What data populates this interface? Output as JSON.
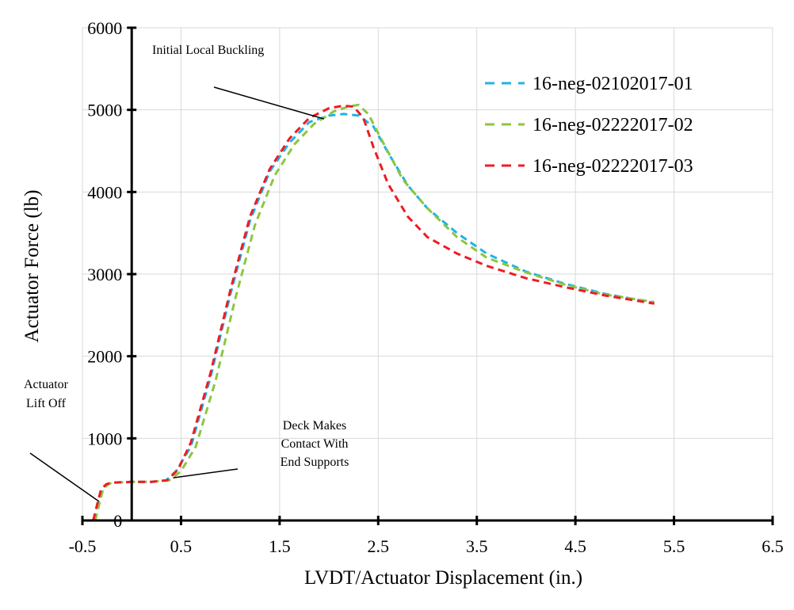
{
  "chart_data": {
    "type": "line",
    "title": "",
    "xlabel": "LVDT/Actuator Displacement (in.)",
    "ylabel": "Actuator Force (lb)",
    "xlim": [
      -0.5,
      6.5
    ],
    "ylim": [
      0,
      6000
    ],
    "xticks": [
      -0.5,
      0.5,
      1.5,
      2.5,
      3.5,
      4.5,
      5.5,
      6.5
    ],
    "xtick_labels": [
      "-0.5",
      "0.5",
      "1.5",
      "2.5",
      "3.5",
      "4.5",
      "5.5",
      "6.5"
    ],
    "yticks": [
      0,
      1000,
      2000,
      3000,
      4000,
      5000,
      6000
    ],
    "ytick_labels": [
      "0",
      "1000",
      "2000",
      "3000",
      "4000",
      "5000",
      "6000"
    ],
    "grid": true,
    "legend_position": "top-right",
    "series": [
      {
        "name": "16-neg-02102017-01",
        "color": "#1fb3e6",
        "x": [
          -0.38,
          -0.34,
          -0.3,
          -0.25,
          -0.2,
          0.0,
          0.2,
          0.35,
          0.45,
          0.6,
          0.8,
          1.0,
          1.2,
          1.4,
          1.6,
          1.8,
          2.0,
          2.15,
          2.3,
          2.45,
          2.6,
          2.8,
          3.0,
          3.3,
          3.6,
          4.0,
          4.4,
          4.8,
          5.3
        ],
        "y": [
          0,
          200,
          380,
          440,
          460,
          470,
          470,
          490,
          600,
          900,
          1750,
          2750,
          3650,
          4250,
          4600,
          4850,
          4930,
          4950,
          4930,
          4800,
          4480,
          4080,
          3800,
          3500,
          3250,
          3030,
          2880,
          2760,
          2650
        ]
      },
      {
        "name": "16-neg-02222017-02",
        "color": "#8cc63f",
        "x": [
          -0.37,
          -0.33,
          -0.29,
          -0.24,
          -0.2,
          0.0,
          0.2,
          0.38,
          0.5,
          0.65,
          0.85,
          1.05,
          1.25,
          1.45,
          1.65,
          1.85,
          2.05,
          2.2,
          2.3,
          2.4,
          2.55,
          2.75,
          3.0,
          3.3,
          3.6,
          4.0,
          4.4,
          4.8,
          5.3
        ],
        "y": [
          0,
          200,
          380,
          440,
          460,
          470,
          470,
          490,
          600,
          900,
          1700,
          2700,
          3600,
          4200,
          4580,
          4830,
          4980,
          5040,
          5060,
          4950,
          4600,
          4150,
          3800,
          3450,
          3200,
          3020,
          2870,
          2750,
          2660
        ]
      },
      {
        "name": "16-neg-02222017-03",
        "color": "#ee1c24",
        "x": [
          -0.39,
          -0.35,
          -0.31,
          -0.26,
          -0.21,
          0.0,
          0.2,
          0.36,
          0.47,
          0.6,
          0.8,
          1.0,
          1.2,
          1.4,
          1.6,
          1.8,
          2.0,
          2.15,
          2.25,
          2.35,
          2.45,
          2.6,
          2.8,
          3.0,
          3.3,
          3.6,
          4.0,
          4.4,
          4.8,
          5.3
        ],
        "y": [
          0,
          200,
          380,
          440,
          460,
          470,
          470,
          490,
          620,
          950,
          1800,
          2800,
          3700,
          4280,
          4650,
          4900,
          5020,
          5050,
          5040,
          4900,
          4550,
          4100,
          3700,
          3450,
          3250,
          3100,
          2950,
          2840,
          2740,
          2640
        ]
      }
    ],
    "annotations": [
      {
        "lines": [
          "Initial Local Buckling"
        ],
        "target_x": 1.95,
        "target_y": 4890
      },
      {
        "lines": [
          "Actuator",
          "Lift Off"
        ],
        "target_x": -0.33,
        "target_y": 230
      },
      {
        "lines": [
          "Deck Makes",
          "Contact With",
          "End Supports"
        ],
        "target_x": 0.42,
        "target_y": 520
      }
    ]
  }
}
